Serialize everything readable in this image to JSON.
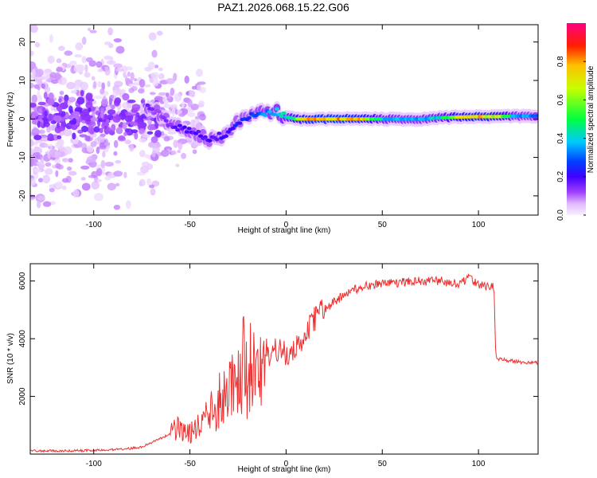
{
  "title": "PAZ1.2026.068.15.22.G06",
  "chart_data": [
    {
      "type": "heatmap",
      "title": "PAZ1.2026.068.15.22.G06",
      "xlabel": "Height of straight line (km)",
      "ylabel": "Frequency (Hz)",
      "xlim": [
        -133,
        131
      ],
      "ylim": [
        -25,
        24.5
      ],
      "xticks": [
        -100,
        -50,
        0,
        50,
        100
      ],
      "yticks": [
        -20,
        -10,
        0,
        10,
        20
      ],
      "colorbar": {
        "label": "Normalized spectral amplitude",
        "range": [
          0.0,
          1.0
        ],
        "ticks": [
          0.0,
          0.2,
          0.4,
          0.6,
          0.8
        ],
        "colors": [
          "#f8f0ff",
          "#e0b8ff",
          "#a040ff",
          "#4000ff",
          "#0040ff",
          "#00c8ff",
          "#00ff40",
          "#c8ff00",
          "#ffc000",
          "#ff2000",
          "#ff0080"
        ]
      },
      "ridge": {
        "x": [
          -72,
          -66,
          -60,
          -55,
          -50,
          -45,
          -40,
          -35,
          -30,
          -27,
          -24,
          -20,
          -15,
          -10,
          -5,
          0,
          5,
          10,
          20,
          30,
          40,
          50,
          60,
          70,
          80,
          90,
          100,
          110,
          120,
          131
        ],
        "frequency": [
          3.0,
          1.5,
          -1.5,
          -2.5,
          -3.0,
          -4.0,
          -5.0,
          -4.5,
          -3.5,
          -2.0,
          -0.5,
          0.5,
          1.0,
          1.5,
          2.0,
          0.5,
          0.0,
          0.0,
          0.0,
          0.0,
          0.0,
          0.0,
          0.0,
          0.0,
          0.3,
          0.5,
          0.6,
          0.6,
          0.7,
          0.8
        ],
        "amplitude": [
          0.25,
          0.22,
          0.25,
          0.3,
          0.3,
          0.3,
          0.3,
          0.3,
          0.32,
          0.35,
          0.35,
          0.4,
          0.45,
          0.48,
          0.5,
          0.55,
          0.65,
          0.8,
          0.85,
          0.85,
          0.8,
          0.55,
          0.5,
          0.5,
          0.55,
          0.75,
          0.8,
          0.75,
          0.5,
          0.45
        ]
      }
    },
    {
      "type": "line",
      "title": "",
      "xlabel": "Height of straight line (km)",
      "ylabel": "SNR (10 * v/v)",
      "xlim": [
        -133,
        131
      ],
      "ylim": [
        0,
        6600
      ],
      "xticks": [
        -100,
        -50,
        0,
        50,
        100
      ],
      "yticks": [
        2000,
        4000,
        6000
      ],
      "color": "#ee3030",
      "series": [
        {
          "name": "SNR",
          "x": [
            -133,
            -120,
            -110,
            -100,
            -90,
            -80,
            -75,
            -70,
            -65,
            -60,
            -55,
            -50,
            -45,
            -40,
            -35,
            -30,
            -25,
            -22,
            -20,
            -18,
            -15,
            -10,
            -5,
            0,
            5,
            10,
            15,
            20,
            25,
            30,
            35,
            40,
            50,
            60,
            70,
            80,
            90,
            95,
            100,
            105,
            108,
            109,
            110,
            115,
            120,
            131
          ],
          "y": [
            120,
            110,
            120,
            130,
            150,
            200,
            250,
            400,
            550,
            700,
            900,
            800,
            1000,
            1400,
            1800,
            2200,
            2800,
            3200,
            2300,
            3500,
            3000,
            3400,
            3600,
            3500,
            3700,
            4200,
            4700,
            5000,
            5300,
            5500,
            5700,
            5800,
            5900,
            5950,
            6000,
            6000,
            5900,
            6100,
            5850,
            5800,
            5850,
            3400,
            3300,
            3250,
            3200,
            3150
          ]
        }
      ]
    }
  ]
}
